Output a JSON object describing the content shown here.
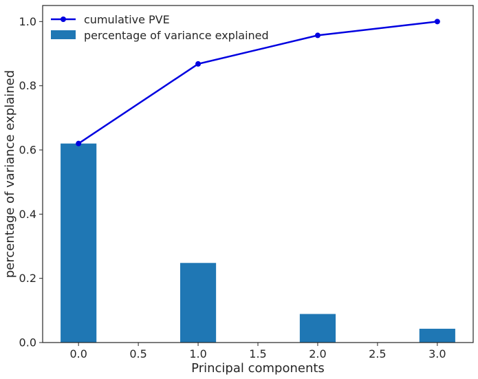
{
  "chart_data": {
    "type": "bar",
    "xlabel": "Principal components",
    "ylabel": "percentage of variance explained",
    "xlim": [
      -0.3,
      3.3
    ],
    "ylim": [
      0,
      1.05
    ],
    "x_ticks": [
      "0.0",
      "0.5",
      "1.0",
      "1.5",
      "2.0",
      "2.5",
      "3.0"
    ],
    "y_ticks": [
      "0.0",
      "0.2",
      "0.4",
      "0.6",
      "0.8",
      "1.0"
    ],
    "grid": false,
    "legend_position": "top-left",
    "series": [
      {
        "name": "cumulative PVE",
        "kind": "line",
        "color": "#0000e0",
        "x": [
          0,
          1,
          2,
          3
        ],
        "values": [
          0.62,
          0.868,
          0.957,
          1.0
        ]
      },
      {
        "name": "percentage of variance explained",
        "kind": "bar",
        "color": "#1f77b4",
        "x": [
          0,
          1,
          2,
          3
        ],
        "values": [
          0.62,
          0.248,
          0.089,
          0.043
        ],
        "bar_width": 0.3
      }
    ]
  }
}
